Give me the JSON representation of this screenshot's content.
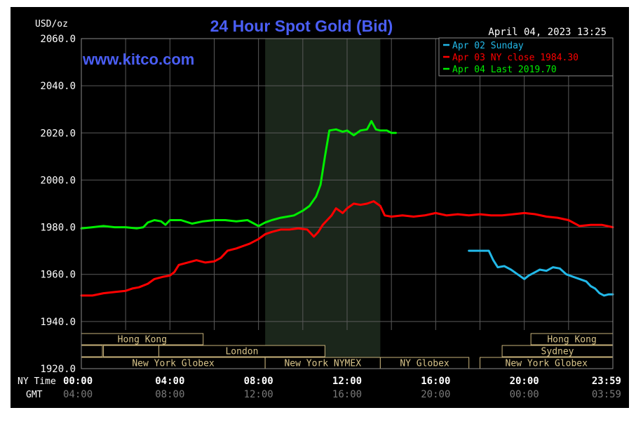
{
  "chart_data": {
    "type": "line",
    "title": "24 Hour Spot Gold (Bid)",
    "unit_label": "USD/oz",
    "timestamp": "April 04, 2023 13:25",
    "watermark": "www.kitco.com",
    "row_label_local": "NY Time",
    "row_label_gmt": "GMT",
    "ylim": [
      1920,
      2060
    ],
    "y_ticks": [
      "2060.0",
      "2040.0",
      "2020.0",
      "2000.0",
      "1980.0",
      "1960.0",
      "1940.0",
      "1920.0"
    ],
    "y_tick_values": [
      2060,
      2040,
      2020,
      2000,
      1980,
      1960,
      1940,
      1920
    ],
    "xlim": [
      0,
      24
    ],
    "x_ticks": [
      {
        "pos": 0,
        "ny": "00:00",
        "gmt": "04:00"
      },
      {
        "pos": 4,
        "ny": "04:00",
        "gmt": "08:00"
      },
      {
        "pos": 8,
        "ny": "08:00",
        "gmt": "12:00"
      },
      {
        "pos": 12,
        "ny": "12:00",
        "gmt": "16:00"
      },
      {
        "pos": 16,
        "ny": "16:00",
        "gmt": "20:00"
      },
      {
        "pos": 20,
        "ny": "20:00",
        "gmt": "00:00"
      },
      {
        "pos": 24,
        "ny": "23:59",
        "gmt": "03:59"
      }
    ],
    "grid": true,
    "legend_placement": "top-right",
    "highlight_band": [
      8.3,
      13.5
    ],
    "series": [
      {
        "name": "Apr 02 Sunday",
        "label": "Apr 02 Sunday",
        "color": "#22b8e8",
        "points": [
          [
            17.5,
            1970
          ],
          [
            18.4,
            1970
          ],
          [
            18.6,
            1966
          ],
          [
            18.8,
            1963
          ],
          [
            19.1,
            1963.5
          ],
          [
            19.4,
            1962
          ],
          [
            19.7,
            1960
          ],
          [
            20.0,
            1958
          ],
          [
            20.2,
            1959.5
          ],
          [
            20.5,
            1961
          ],
          [
            20.7,
            1962
          ],
          [
            21.0,
            1961.5
          ],
          [
            21.3,
            1963
          ],
          [
            21.6,
            1962.5
          ],
          [
            21.9,
            1960
          ],
          [
            22.2,
            1959
          ],
          [
            22.5,
            1958
          ],
          [
            22.8,
            1957
          ],
          [
            23.0,
            1955
          ],
          [
            23.2,
            1954
          ],
          [
            23.4,
            1952
          ],
          [
            23.6,
            1951
          ],
          [
            23.8,
            1951.5
          ],
          [
            24.0,
            1951.5
          ]
        ]
      },
      {
        "name": "Apr 03 NY close 1984.30",
        "label": "Apr 03 NY close 1984.30",
        "color": "#ff0000",
        "points": [
          [
            0,
            1951
          ],
          [
            0.5,
            1951
          ],
          [
            1.0,
            1952
          ],
          [
            1.5,
            1952.5
          ],
          [
            2.0,
            1953
          ],
          [
            2.3,
            1954
          ],
          [
            2.6,
            1954.5
          ],
          [
            3.0,
            1956
          ],
          [
            3.3,
            1958
          ],
          [
            3.7,
            1959
          ],
          [
            4.0,
            1959.5
          ],
          [
            4.2,
            1961
          ],
          [
            4.4,
            1964
          ],
          [
            4.8,
            1965
          ],
          [
            5.2,
            1966
          ],
          [
            5.6,
            1965
          ],
          [
            6.0,
            1965.5
          ],
          [
            6.3,
            1967
          ],
          [
            6.6,
            1970
          ],
          [
            7.0,
            1971
          ],
          [
            7.3,
            1972
          ],
          [
            7.6,
            1973
          ],
          [
            8.0,
            1975
          ],
          [
            8.3,
            1977
          ],
          [
            8.6,
            1978
          ],
          [
            9.0,
            1979
          ],
          [
            9.4,
            1979
          ],
          [
            9.8,
            1979.5
          ],
          [
            10.2,
            1979
          ],
          [
            10.4,
            1977
          ],
          [
            10.5,
            1976
          ],
          [
            10.7,
            1978
          ],
          [
            10.9,
            1981
          ],
          [
            11.1,
            1983
          ],
          [
            11.3,
            1985
          ],
          [
            11.5,
            1988
          ],
          [
            11.8,
            1986
          ],
          [
            12.0,
            1988
          ],
          [
            12.3,
            1990
          ],
          [
            12.6,
            1989.5
          ],
          [
            12.9,
            1990
          ],
          [
            13.2,
            1991
          ],
          [
            13.5,
            1989
          ],
          [
            13.7,
            1985
          ],
          [
            14.0,
            1984.5
          ],
          [
            14.5,
            1985
          ],
          [
            15.0,
            1984.5
          ],
          [
            15.5,
            1985
          ],
          [
            16.0,
            1986
          ],
          [
            16.5,
            1985
          ],
          [
            17.0,
            1985.5
          ],
          [
            17.5,
            1985
          ],
          [
            18.0,
            1985.5
          ],
          [
            18.5,
            1985
          ],
          [
            19.0,
            1985
          ],
          [
            19.5,
            1985.5
          ],
          [
            20.0,
            1986
          ],
          [
            20.5,
            1985.5
          ],
          [
            21.0,
            1984.5
          ],
          [
            21.5,
            1984
          ],
          [
            22.0,
            1983
          ],
          [
            22.5,
            1980.5
          ],
          [
            23.0,
            1981
          ],
          [
            23.5,
            1981
          ],
          [
            24.0,
            1980
          ]
        ]
      },
      {
        "name": "Apr 04 Last 2019.70",
        "label": "Apr 04 Last 2019.70",
        "color": "#00ee00",
        "points": [
          [
            0,
            1979.5
          ],
          [
            0.5,
            1980
          ],
          [
            1.0,
            1980.5
          ],
          [
            1.5,
            1980
          ],
          [
            2.0,
            1980
          ],
          [
            2.5,
            1979.5
          ],
          [
            2.8,
            1980
          ],
          [
            3.0,
            1982
          ],
          [
            3.3,
            1983
          ],
          [
            3.6,
            1982.5
          ],
          [
            3.8,
            1981
          ],
          [
            4.0,
            1983
          ],
          [
            4.5,
            1983
          ],
          [
            5.0,
            1981.5
          ],
          [
            5.5,
            1982.5
          ],
          [
            6.0,
            1983
          ],
          [
            6.5,
            1983
          ],
          [
            7.0,
            1982.5
          ],
          [
            7.5,
            1983
          ],
          [
            7.8,
            1981.5
          ],
          [
            8.0,
            1980.5
          ],
          [
            8.3,
            1982
          ],
          [
            8.6,
            1983
          ],
          [
            9.0,
            1984
          ],
          [
            9.3,
            1984.5
          ],
          [
            9.6,
            1985
          ],
          [
            10.0,
            1987
          ],
          [
            10.3,
            1989
          ],
          [
            10.6,
            1993
          ],
          [
            10.8,
            1998
          ],
          [
            11.0,
            2010
          ],
          [
            11.2,
            2021
          ],
          [
            11.5,
            2021.5
          ],
          [
            11.8,
            2020.5
          ],
          [
            12.0,
            2021
          ],
          [
            12.3,
            2019
          ],
          [
            12.6,
            2021
          ],
          [
            12.9,
            2021.5
          ],
          [
            13.1,
            2025
          ],
          [
            13.3,
            2021.5
          ],
          [
            13.5,
            2021
          ],
          [
            13.8,
            2021
          ],
          [
            14.0,
            2020
          ],
          [
            14.2,
            2020
          ]
        ]
      }
    ],
    "sessions": [
      {
        "label": "Hong Kong",
        "row": 0,
        "start": 0,
        "end": 5.5
      },
      {
        "label": "Hong Kong",
        "row": 0,
        "start": 20.3,
        "end": 24
      },
      {
        "label": "",
        "row": 1,
        "start": 0,
        "end": 0.95
      },
      {
        "label": "",
        "row": 1,
        "start": 1.0,
        "end": 3.5
      },
      {
        "label": "London",
        "row": 1,
        "start": 3.5,
        "end": 11.0
      },
      {
        "label": "Sydney",
        "row": 1,
        "start": 19.0,
        "end": 24
      },
      {
        "label": "New York Globex",
        "row": 2,
        "start": 0,
        "end": 8.3
      },
      {
        "label": "New York NYMEX",
        "row": 2,
        "start": 8.3,
        "end": 13.5
      },
      {
        "label": "NY Globex",
        "row": 2,
        "start": 13.5,
        "end": 17.5
      },
      {
        "label": "New York Globex",
        "row": 2,
        "start": 18.0,
        "end": 24
      }
    ]
  }
}
